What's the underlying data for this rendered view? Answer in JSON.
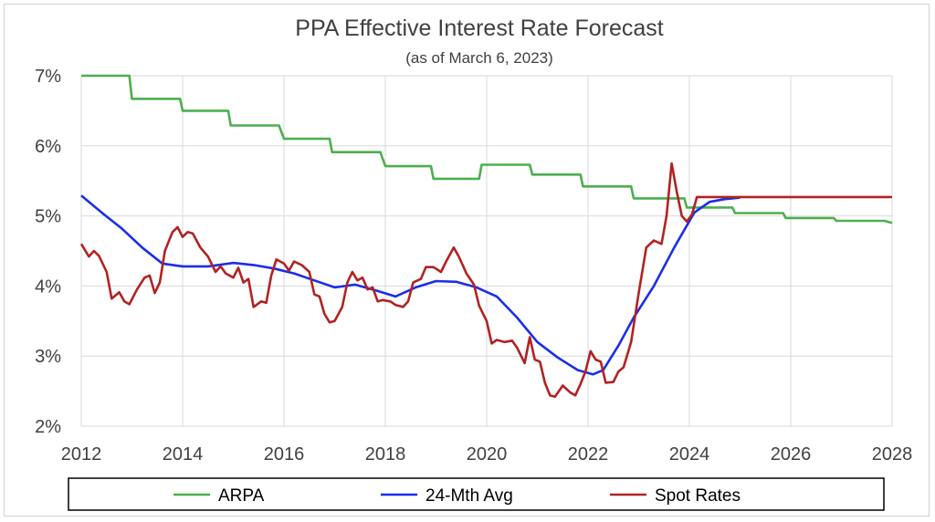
{
  "chart_data": {
    "type": "line",
    "title": "PPA Effective Interest Rate Forecast",
    "subtitle": "(as of March 6, 2023)",
    "xlabel": "",
    "ylabel": "",
    "xlim": [
      2012,
      2028
    ],
    "ylim": [
      2,
      7
    ],
    "x_ticks": [
      2012,
      2014,
      2016,
      2018,
      2020,
      2022,
      2024,
      2026,
      2028
    ],
    "x_tick_labels": [
      "2012",
      "2014",
      "2016",
      "2018",
      "2020",
      "2022",
      "2024",
      "2026",
      "2028"
    ],
    "y_ticks": [
      2,
      3,
      4,
      5,
      6,
      7
    ],
    "y_tick_labels": [
      "2%",
      "3%",
      "4%",
      "5%",
      "6%",
      "7%"
    ],
    "grid": true,
    "legend_position": "bottom",
    "series": [
      {
        "name": "ARPA",
        "color": "#4caf50",
        "points": [
          [
            2012,
            7.0
          ],
          [
            2012.95,
            7.0
          ],
          [
            2013.0,
            6.67
          ],
          [
            2013.95,
            6.67
          ],
          [
            2014.0,
            6.5
          ],
          [
            2014.9,
            6.5
          ],
          [
            2014.95,
            6.29
          ],
          [
            2015.9,
            6.29
          ],
          [
            2016.0,
            6.1
          ],
          [
            2016.9,
            6.1
          ],
          [
            2016.95,
            5.91
          ],
          [
            2017.9,
            5.91
          ],
          [
            2018.0,
            5.71
          ],
          [
            2018.9,
            5.71
          ],
          [
            2018.95,
            5.53
          ],
          [
            2019.85,
            5.53
          ],
          [
            2019.9,
            5.73
          ],
          [
            2020.85,
            5.73
          ],
          [
            2020.9,
            5.59
          ],
          [
            2021.85,
            5.59
          ],
          [
            2021.9,
            5.42
          ],
          [
            2022.85,
            5.42
          ],
          [
            2022.9,
            5.25
          ],
          [
            2023.9,
            5.25
          ],
          [
            2023.95,
            5.12
          ],
          [
            2024.85,
            5.12
          ],
          [
            2024.9,
            5.04
          ],
          [
            2025.85,
            5.04
          ],
          [
            2025.9,
            4.97
          ],
          [
            2026.85,
            4.97
          ],
          [
            2026.9,
            4.93
          ],
          [
            2027.85,
            4.93
          ],
          [
            2028.0,
            4.9
          ]
        ]
      },
      {
        "name": "24-Mth Avg",
        "color": "#1a2ee8",
        "points": [
          [
            2012.0,
            5.29
          ],
          [
            2012.4,
            5.05
          ],
          [
            2012.8,
            4.82
          ],
          [
            2013.2,
            4.55
          ],
          [
            2013.6,
            4.32
          ],
          [
            2014.0,
            4.28
          ],
          [
            2014.5,
            4.28
          ],
          [
            2015.0,
            4.33
          ],
          [
            2015.4,
            4.3
          ],
          [
            2015.8,
            4.25
          ],
          [
            2016.2,
            4.18
          ],
          [
            2016.6,
            4.08
          ],
          [
            2017.0,
            3.98
          ],
          [
            2017.4,
            4.02
          ],
          [
            2017.8,
            3.94
          ],
          [
            2018.2,
            3.85
          ],
          [
            2018.6,
            3.98
          ],
          [
            2019.0,
            4.07
          ],
          [
            2019.4,
            4.06
          ],
          [
            2019.8,
            3.98
          ],
          [
            2020.2,
            3.85
          ],
          [
            2020.6,
            3.55
          ],
          [
            2021.0,
            3.2
          ],
          [
            2021.4,
            2.98
          ],
          [
            2021.8,
            2.8
          ],
          [
            2022.1,
            2.74
          ],
          [
            2022.3,
            2.8
          ],
          [
            2022.6,
            3.15
          ],
          [
            2022.9,
            3.55
          ],
          [
            2023.3,
            4.0
          ],
          [
            2023.7,
            4.55
          ],
          [
            2024.1,
            5.05
          ],
          [
            2024.4,
            5.2
          ],
          [
            2024.7,
            5.24
          ],
          [
            2025.0,
            5.26
          ]
        ]
      },
      {
        "name": "Spot Rates",
        "color": "#b22222",
        "points": [
          [
            2012.0,
            4.6
          ],
          [
            2012.15,
            4.42
          ],
          [
            2012.25,
            4.5
          ],
          [
            2012.35,
            4.43
          ],
          [
            2012.5,
            4.2
          ],
          [
            2012.6,
            3.82
          ],
          [
            2012.75,
            3.91
          ],
          [
            2012.85,
            3.78
          ],
          [
            2012.95,
            3.74
          ],
          [
            2013.1,
            3.95
          ],
          [
            2013.25,
            4.12
          ],
          [
            2013.35,
            4.15
          ],
          [
            2013.45,
            3.9
          ],
          [
            2013.55,
            4.05
          ],
          [
            2013.65,
            4.5
          ],
          [
            2013.8,
            4.77
          ],
          [
            2013.9,
            4.84
          ],
          [
            2014.0,
            4.7
          ],
          [
            2014.1,
            4.77
          ],
          [
            2014.2,
            4.75
          ],
          [
            2014.35,
            4.55
          ],
          [
            2014.5,
            4.42
          ],
          [
            2014.65,
            4.2
          ],
          [
            2014.75,
            4.28
          ],
          [
            2014.85,
            4.18
          ],
          [
            2015.0,
            4.12
          ],
          [
            2015.1,
            4.26
          ],
          [
            2015.2,
            4.05
          ],
          [
            2015.3,
            4.1
          ],
          [
            2015.4,
            3.7
          ],
          [
            2015.55,
            3.78
          ],
          [
            2015.65,
            3.76
          ],
          [
            2015.75,
            4.15
          ],
          [
            2015.85,
            4.38
          ],
          [
            2016.0,
            4.32
          ],
          [
            2016.1,
            4.22
          ],
          [
            2016.2,
            4.35
          ],
          [
            2016.35,
            4.3
          ],
          [
            2016.5,
            4.2
          ],
          [
            2016.6,
            3.88
          ],
          [
            2016.7,
            3.85
          ],
          [
            2016.8,
            3.6
          ],
          [
            2016.9,
            3.48
          ],
          [
            2017.0,
            3.5
          ],
          [
            2017.15,
            3.7
          ],
          [
            2017.25,
            4.05
          ],
          [
            2017.35,
            4.2
          ],
          [
            2017.45,
            4.08
          ],
          [
            2017.55,
            4.12
          ],
          [
            2017.65,
            3.95
          ],
          [
            2017.75,
            3.98
          ],
          [
            2017.85,
            3.78
          ],
          [
            2017.95,
            3.8
          ],
          [
            2018.1,
            3.78
          ],
          [
            2018.2,
            3.73
          ],
          [
            2018.35,
            3.7
          ],
          [
            2018.45,
            3.78
          ],
          [
            2018.55,
            4.05
          ],
          [
            2018.7,
            4.1
          ],
          [
            2018.8,
            4.27
          ],
          [
            2018.95,
            4.27
          ],
          [
            2019.1,
            4.2
          ],
          [
            2019.2,
            4.35
          ],
          [
            2019.35,
            4.55
          ],
          [
            2019.45,
            4.42
          ],
          [
            2019.6,
            4.18
          ],
          [
            2019.75,
            4.02
          ],
          [
            2019.85,
            3.72
          ],
          [
            2020.0,
            3.5
          ],
          [
            2020.1,
            3.18
          ],
          [
            2020.2,
            3.23
          ],
          [
            2020.35,
            3.2
          ],
          [
            2020.5,
            3.22
          ],
          [
            2020.6,
            3.12
          ],
          [
            2020.75,
            2.9
          ],
          [
            2020.85,
            3.27
          ],
          [
            2020.95,
            2.95
          ],
          [
            2021.05,
            2.92
          ],
          [
            2021.15,
            2.62
          ],
          [
            2021.25,
            2.44
          ],
          [
            2021.35,
            2.42
          ],
          [
            2021.5,
            2.58
          ],
          [
            2021.65,
            2.48
          ],
          [
            2021.75,
            2.44
          ],
          [
            2021.85,
            2.6
          ],
          [
            2021.95,
            2.78
          ],
          [
            2022.05,
            3.07
          ],
          [
            2022.15,
            2.95
          ],
          [
            2022.25,
            2.92
          ],
          [
            2022.35,
            2.62
          ],
          [
            2022.5,
            2.63
          ],
          [
            2022.6,
            2.78
          ],
          [
            2022.7,
            2.84
          ],
          [
            2022.85,
            3.2
          ],
          [
            2023.0,
            3.9
          ],
          [
            2023.15,
            4.55
          ],
          [
            2023.3,
            4.65
          ],
          [
            2023.45,
            4.6
          ],
          [
            2023.55,
            5.0
          ],
          [
            2023.65,
            5.75
          ],
          [
            2023.75,
            5.35
          ],
          [
            2023.85,
            5.0
          ],
          [
            2023.95,
            4.92
          ],
          [
            2024.05,
            5.02
          ],
          [
            2024.15,
            5.27
          ],
          [
            2024.5,
            5.27
          ],
          [
            2025.0,
            5.27
          ],
          [
            2026.0,
            5.27
          ],
          [
            2027.0,
            5.27
          ],
          [
            2028.0,
            5.27
          ]
        ]
      }
    ]
  }
}
